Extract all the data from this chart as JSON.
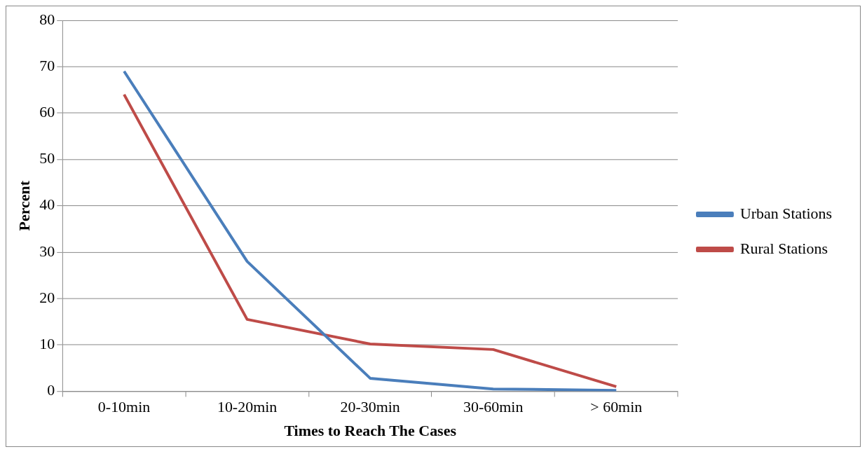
{
  "chart_data": {
    "type": "line",
    "xlabel": "Times to Reach The Cases",
    "ylabel": "Percent",
    "categories": [
      "0-10min",
      "10-20min",
      "20-30min",
      "30-60min",
      "> 60min"
    ],
    "series": [
      {
        "name": "Urban Stations",
        "color": "#4a7ebb",
        "values": [
          69,
          28,
          2.8,
          0.5,
          0.2
        ]
      },
      {
        "name": "Rural Stations",
        "color": "#be4b48",
        "values": [
          64,
          15.5,
          10.2,
          9,
          1
        ]
      }
    ],
    "ylim": [
      0,
      80
    ],
    "yticks": [
      0,
      10,
      20,
      30,
      40,
      50,
      60,
      70,
      80
    ],
    "grid": "y",
    "legend": "right",
    "marker": "none",
    "line_style": "solid"
  }
}
